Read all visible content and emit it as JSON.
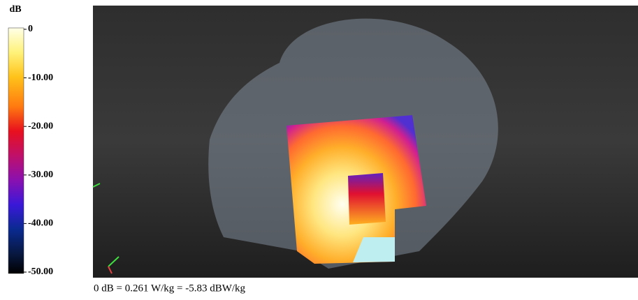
{
  "colorbar": {
    "unit": "dB",
    "range": [
      -50,
      0
    ],
    "ticks": [
      {
        "value": 0,
        "label": "0"
      },
      {
        "value": -10,
        "label": "-10.00"
      },
      {
        "value": -20,
        "label": "-20.00"
      },
      {
        "value": -30,
        "label": "-30.00"
      },
      {
        "value": -40,
        "label": "-40.00"
      },
      {
        "value": -50,
        "label": "-50.00"
      }
    ]
  },
  "caption": "0 dB = 0.261 W/kg = -5.83 dBW/kg"
}
